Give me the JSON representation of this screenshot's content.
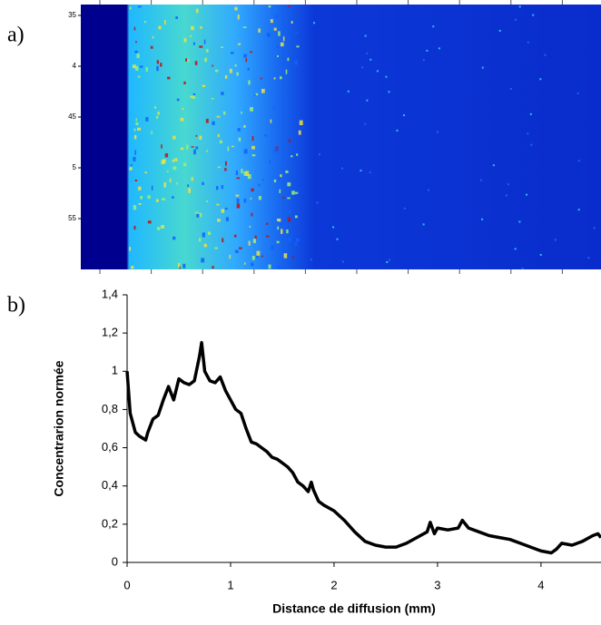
{
  "panel_a": {
    "label": "a)",
    "y_labels": [
      "35",
      "4",
      "45",
      "5",
      "55"
    ]
  },
  "chart_data": {
    "type": "line",
    "panel_label": "b)",
    "x_label": "Distance de diffusion (mm)",
    "y_label": "Concentrarion normée",
    "xlim": [
      0,
      4.58
    ],
    "xticks": [
      0,
      1,
      2,
      3,
      4
    ],
    "ylim": [
      0,
      1.4
    ],
    "yticks": [
      0,
      {
        "value": 0.2,
        "label": "0,2"
      },
      {
        "value": 0.4,
        "label": "0,4"
      },
      {
        "value": 0.6,
        "label": "0,6"
      },
      {
        "value": 0.8,
        "label": "0,8"
      },
      1,
      {
        "value": 1.2,
        "label": "1,2"
      },
      {
        "value": 1.4,
        "label": "1,4"
      }
    ],
    "color": "#000000",
    "grid": false,
    "x": [
      0,
      0.03,
      0.08,
      0.12,
      0.18,
      0.2,
      0.25,
      0.3,
      0.35,
      0.4,
      0.45,
      0.5,
      0.55,
      0.6,
      0.65,
      0.7,
      0.72,
      0.75,
      0.8,
      0.85,
      0.9,
      0.95,
      1.0,
      1.05,
      1.1,
      1.15,
      1.2,
      1.25,
      1.3,
      1.35,
      1.4,
      1.45,
      1.5,
      1.55,
      1.6,
      1.65,
      1.7,
      1.75,
      1.78,
      1.8,
      1.85,
      1.9,
      2.0,
      2.1,
      2.2,
      2.3,
      2.4,
      2.5,
      2.6,
      2.7,
      2.8,
      2.9,
      2.93,
      2.97,
      3.0,
      3.1,
      3.2,
      3.24,
      3.3,
      3.4,
      3.5,
      3.6,
      3.7,
      3.8,
      3.9,
      4.0,
      4.1,
      4.15,
      4.2,
      4.3,
      4.4,
      4.5,
      4.55,
      4.58
    ],
    "values": [
      1.0,
      0.78,
      0.68,
      0.66,
      0.64,
      0.68,
      0.75,
      0.77,
      0.85,
      0.92,
      0.85,
      0.96,
      0.94,
      0.93,
      0.95,
      1.08,
      1.15,
      1.0,
      0.95,
      0.94,
      0.97,
      0.9,
      0.85,
      0.8,
      0.78,
      0.7,
      0.63,
      0.62,
      0.6,
      0.58,
      0.55,
      0.54,
      0.52,
      0.5,
      0.47,
      0.42,
      0.4,
      0.37,
      0.42,
      0.38,
      0.32,
      0.3,
      0.27,
      0.22,
      0.16,
      0.11,
      0.09,
      0.08,
      0.08,
      0.1,
      0.13,
      0.16,
      0.21,
      0.15,
      0.18,
      0.17,
      0.18,
      0.22,
      0.18,
      0.16,
      0.14,
      0.13,
      0.12,
      0.1,
      0.08,
      0.06,
      0.05,
      0.07,
      0.1,
      0.09,
      0.11,
      0.14,
      0.15,
      0.13
    ]
  }
}
